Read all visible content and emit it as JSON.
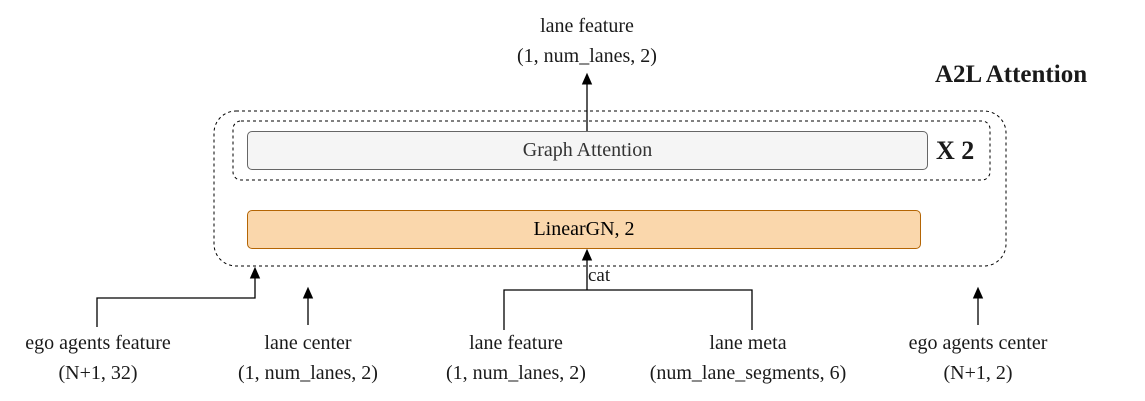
{
  "title": "A2L Attention",
  "repeat": "X 2",
  "blocks": {
    "graph_attention": "Graph Attention",
    "linear_gn": "LinearGN, 2"
  },
  "output": {
    "name": "lane feature",
    "shape": "(1, num_lanes, 2)"
  },
  "concat_label": "cat",
  "inputs": [
    {
      "name": "ego agents feature",
      "shape": "(N+1, 32)"
    },
    {
      "name": "lane center",
      "shape": "(1, num_lanes, 2)"
    },
    {
      "name": "lane feature",
      "shape": "(1, num_lanes, 2)"
    },
    {
      "name": "lane meta",
      "shape": "(num_lane_segments, 6)"
    },
    {
      "name": "ego agents center",
      "shape": "(N+1, 2)"
    }
  ]
}
